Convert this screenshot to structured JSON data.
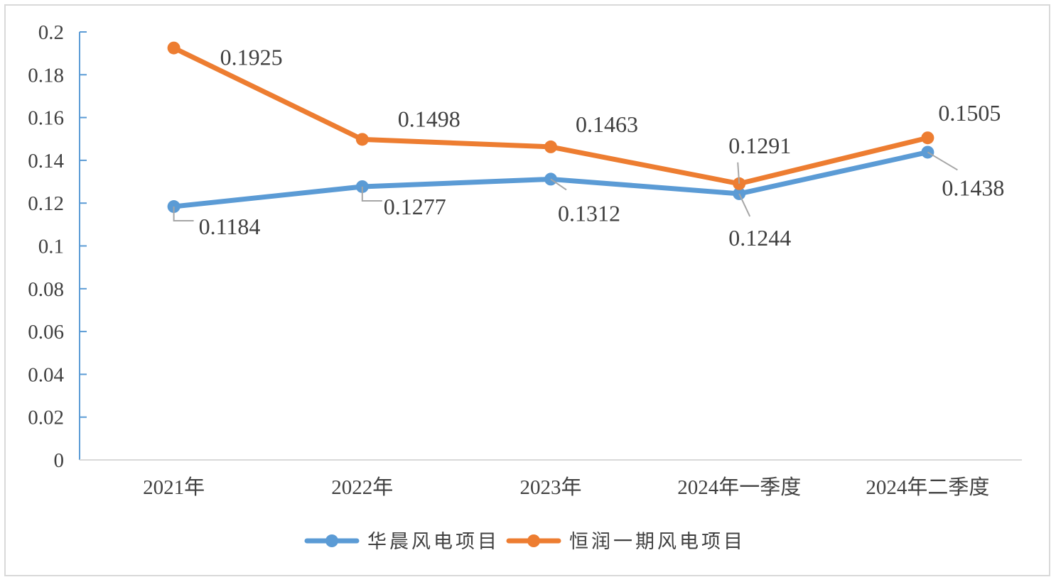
{
  "chart_data": {
    "type": "line",
    "categories": [
      "2021年",
      "2022年",
      "2023年",
      "2024年一季度",
      "2024年二季度"
    ],
    "series": [
      {
        "name": "华晨风电项目",
        "values": [
          0.1184,
          0.1277,
          0.1312,
          0.1244,
          0.1438
        ],
        "color": "#5b9bd5"
      },
      {
        "name": "恒润一期风电项目",
        "values": [
          0.1925,
          0.1498,
          0.1463,
          0.1291,
          0.1505
        ],
        "color": "#ed7d31"
      }
    ],
    "data_labels": {
      "华晨风电项目": [
        "0.1184",
        "0.1277",
        "0.1312",
        "0.1244",
        "0.1438"
      ],
      "恒润一期风电项目": [
        "0.1925",
        "0.1498",
        "0.1463",
        "0.1291",
        "0.1505"
      ]
    },
    "yticks": [
      "0",
      "0.02",
      "0.04",
      "0.06",
      "0.08",
      "0.1",
      "0.12",
      "0.14",
      "0.16",
      "0.18",
      "0.2"
    ],
    "ylim": [
      0,
      0.2
    ],
    "grid": false,
    "legend_position": "bottom",
    "axis_color": "#5b9bd5",
    "title": "",
    "xlabel": "",
    "ylabel": ""
  }
}
